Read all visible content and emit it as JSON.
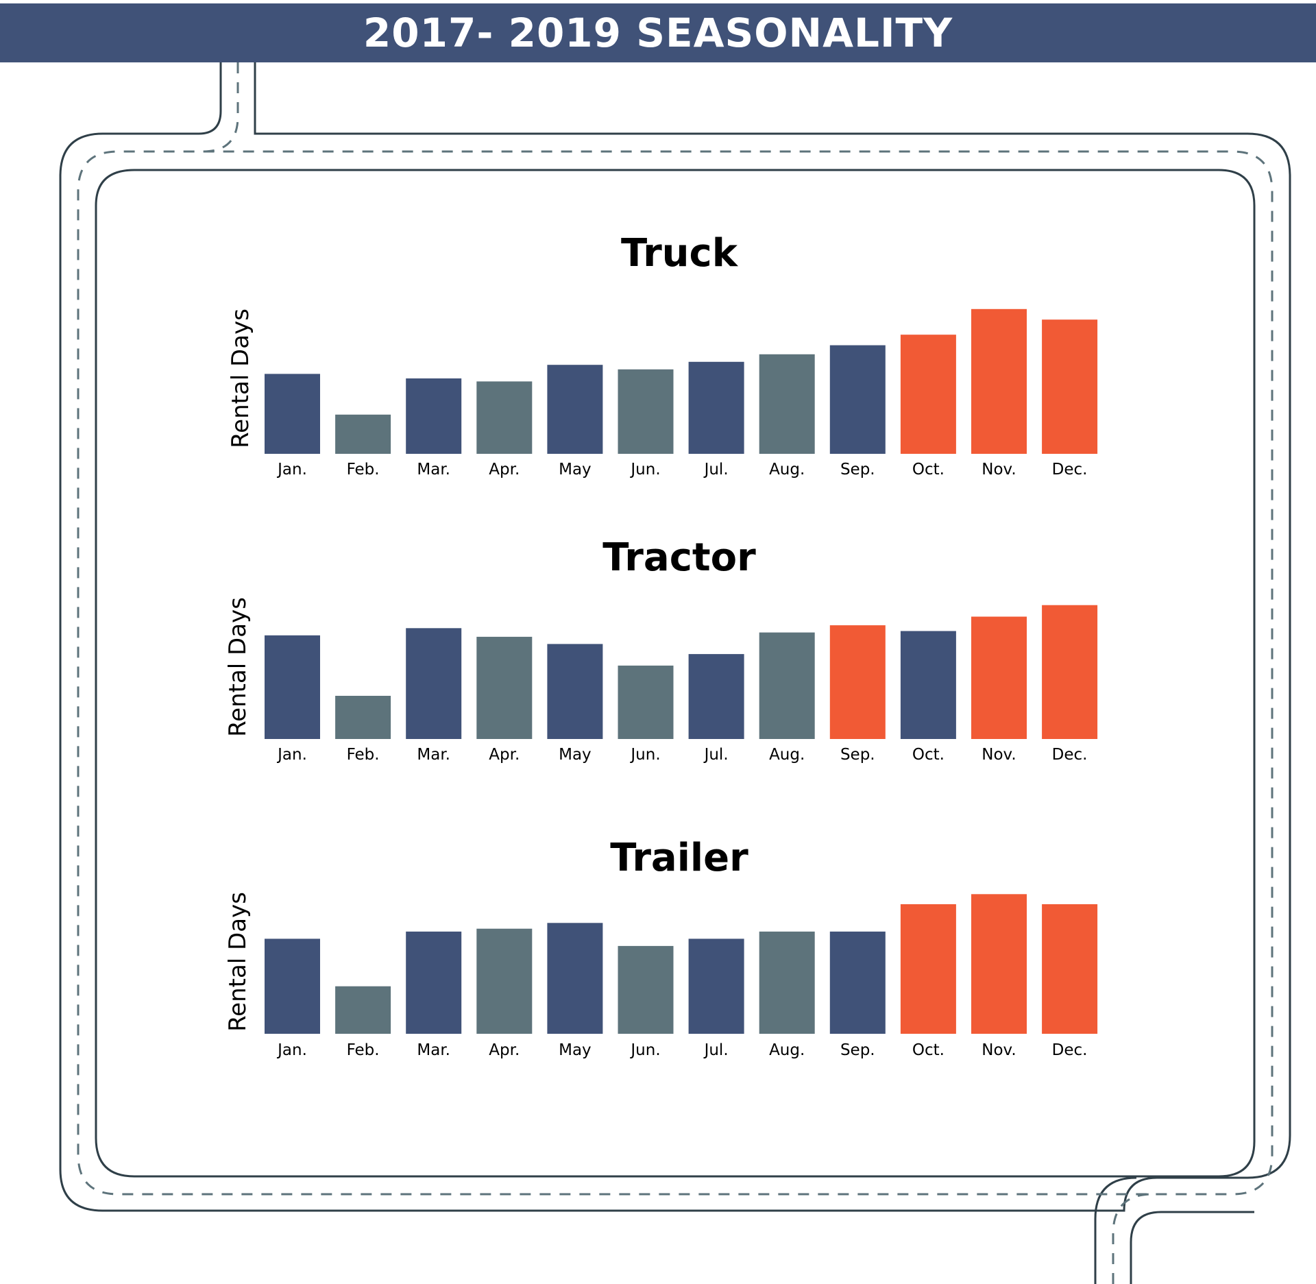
{
  "header": {
    "title": "2017- 2019 SEASONALITY"
  },
  "colors": {
    "banner": "#405278",
    "navy": "#405278",
    "slate": "#5d737b",
    "orange": "#f15a35",
    "road": "#2f3f48"
  },
  "chart_data": [
    {
      "type": "bar",
      "title": "Truck",
      "ylabel": "Rental Days",
      "categories": [
        "Jan.",
        "Feb.",
        "Mar.",
        "Apr.",
        "May",
        "Jun.",
        "Jul.",
        "Aug.",
        "Sep.",
        "Oct.",
        "Nov.",
        "Dec."
      ],
      "values": [
        53,
        26,
        50,
        48,
        59,
        56,
        61,
        66,
        72,
        79,
        96,
        89
      ],
      "colors": [
        "navy",
        "slate",
        "navy",
        "slate",
        "navy",
        "slate",
        "navy",
        "slate",
        "navy",
        "orange",
        "orange",
        "orange"
      ],
      "ylim": [
        0,
        100
      ],
      "grid": false
    },
    {
      "type": "bar",
      "title": "Tractor",
      "ylabel": "Rental Days",
      "categories": [
        "Jan.",
        "Feb.",
        "Mar.",
        "Apr.",
        "May",
        "Jun.",
        "Jul.",
        "Aug.",
        "Sep.",
        "Oct.",
        "Nov.",
        "Dec."
      ],
      "values": [
        72,
        30,
        77,
        71,
        66,
        51,
        59,
        74,
        79,
        75,
        85,
        93
      ],
      "colors": [
        "navy",
        "slate",
        "navy",
        "slate",
        "navy",
        "slate",
        "navy",
        "slate",
        "orange",
        "navy",
        "orange",
        "orange"
      ],
      "ylim": [
        0,
        100
      ],
      "grid": false
    },
    {
      "type": "bar",
      "title": "Trailer",
      "ylabel": "Rental Days",
      "categories": [
        "Jan.",
        "Feb.",
        "Mar.",
        "Apr.",
        "May",
        "Jun.",
        "Jul.",
        "Aug.",
        "Sep.",
        "Oct.",
        "Nov.",
        "Dec."
      ],
      "values": [
        66,
        33,
        71,
        73,
        77,
        61,
        66,
        71,
        71,
        90,
        97,
        90
      ],
      "colors": [
        "navy",
        "slate",
        "navy",
        "slate",
        "navy",
        "slate",
        "navy",
        "slate",
        "navy",
        "orange",
        "orange",
        "orange"
      ],
      "ylim": [
        0,
        100
      ],
      "grid": false
    }
  ]
}
